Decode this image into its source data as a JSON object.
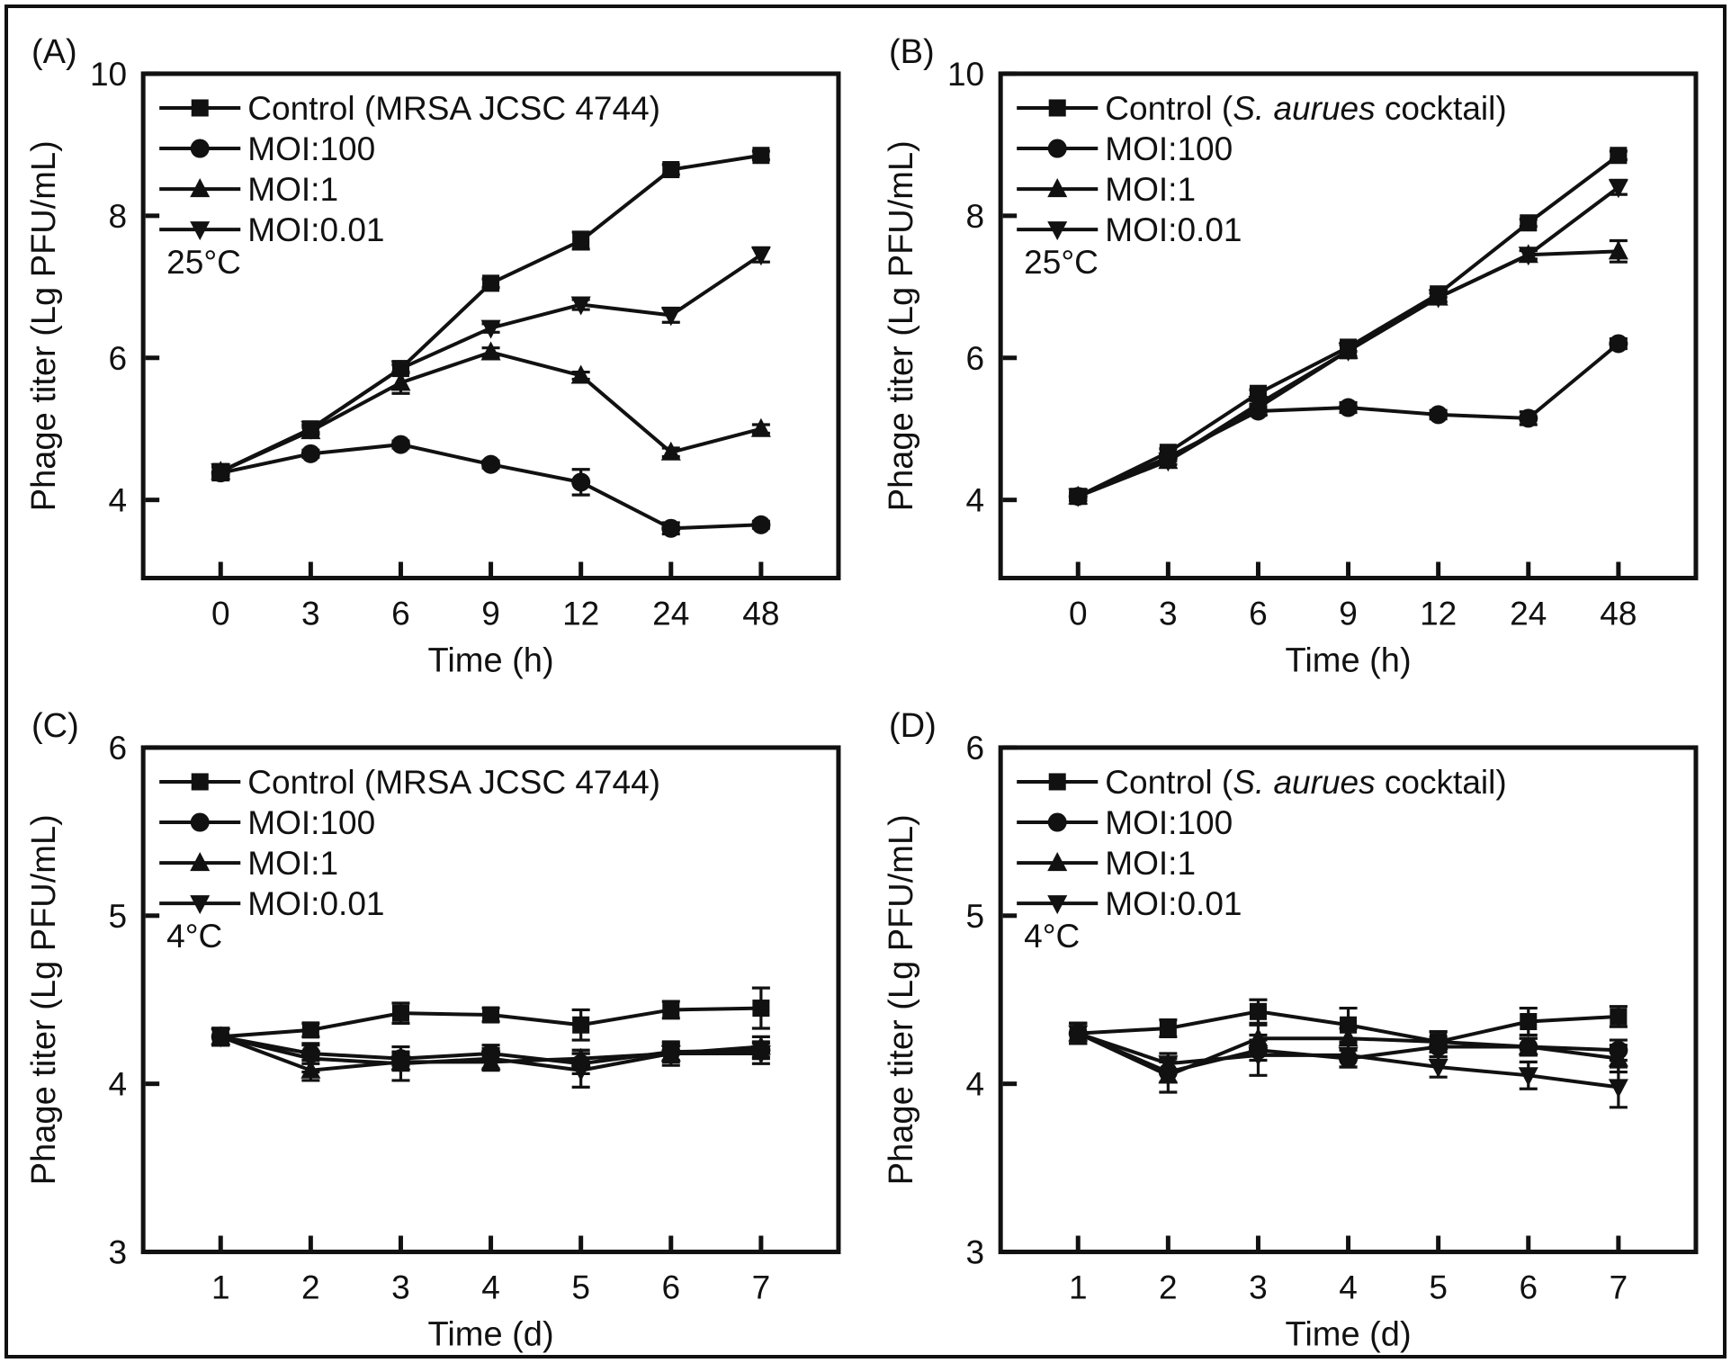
{
  "page": {
    "background": "#ffffff",
    "frame_border_color": "#111111"
  },
  "colors": {
    "ink": "#111111"
  },
  "chart_data": [
    {
      "panel": "A",
      "type": "line",
      "label": "(A)",
      "temperature": "25°C",
      "xlabel": "Time (h)",
      "ylabel": "Phage titer (Lg PFU/mL)",
      "categories": [
        "0",
        "3",
        "6",
        "9",
        "12",
        "24",
        "48"
      ],
      "yticks": [
        4,
        6,
        8,
        10
      ],
      "ylim": [
        2.9,
        10
      ],
      "legend_position": "top-left-inside",
      "grid": false,
      "series": [
        {
          "name": "control",
          "marker": "square",
          "label_parts": [
            {
              "text": "Control (MRSA JCSC 4744)",
              "italic": false
            }
          ],
          "values": [
            4.4,
            5.0,
            5.85,
            7.05,
            7.65,
            8.65,
            8.85
          ],
          "errors": [
            0.07,
            0.06,
            0.06,
            0.06,
            0.12,
            0.07,
            0.06
          ]
        },
        {
          "name": "moi-100",
          "marker": "circle",
          "label_parts": [
            {
              "text": "MOI:100",
              "italic": false
            }
          ],
          "values": [
            4.38,
            4.65,
            4.78,
            4.5,
            4.25,
            3.6,
            3.65
          ],
          "errors": [
            0.1,
            0.05,
            0.05,
            0.05,
            0.18,
            0.08,
            0.05
          ]
        },
        {
          "name": "moi-1",
          "marker": "triangle-up",
          "label_parts": [
            {
              "text": "MOI:1",
              "italic": false
            }
          ],
          "values": [
            4.4,
            4.97,
            5.65,
            6.08,
            5.75,
            4.67,
            5.0
          ],
          "errors": [
            0.06,
            0.05,
            0.15,
            0.06,
            0.05,
            0.06,
            0.06
          ]
        },
        {
          "name": "moi-0-01",
          "marker": "triangle-down",
          "label_parts": [
            {
              "text": "MOI:0.01",
              "italic": false
            }
          ],
          "values": [
            4.4,
            5.0,
            5.85,
            6.42,
            6.75,
            6.6,
            7.45
          ],
          "errors": [
            0.06,
            0.05,
            0.05,
            0.06,
            0.07,
            0.1,
            0.1
          ]
        }
      ]
    },
    {
      "panel": "B",
      "type": "line",
      "label": "(B)",
      "temperature": "25°C",
      "xlabel": "Time (h)",
      "ylabel": "Phage titer (Lg PFU/mL)",
      "categories": [
        "0",
        "3",
        "6",
        "9",
        "12",
        "24",
        "48"
      ],
      "yticks": [
        4,
        6,
        8,
        10
      ],
      "ylim": [
        2.9,
        10
      ],
      "legend_position": "top-left-inside",
      "grid": false,
      "series": [
        {
          "name": "control",
          "marker": "square",
          "label_parts": [
            {
              "text": "Control (",
              "italic": false
            },
            {
              "text": "S. aurues",
              "italic": true
            },
            {
              "text": " cocktail)",
              "italic": false
            }
          ],
          "values": [
            4.05,
            4.67,
            5.5,
            6.15,
            6.9,
            7.9,
            8.85
          ],
          "errors": [
            0.06,
            0.05,
            0.05,
            0.06,
            0.05,
            0.05,
            0.06
          ]
        },
        {
          "name": "moi-100",
          "marker": "circle",
          "label_parts": [
            {
              "text": "MOI:100",
              "italic": false
            }
          ],
          "values": [
            4.05,
            4.6,
            5.25,
            5.3,
            5.2,
            5.15,
            6.2
          ],
          "errors": [
            0.06,
            0.05,
            0.06,
            0.07,
            0.06,
            0.09,
            0.07
          ]
        },
        {
          "name": "moi-1",
          "marker": "triangle-up",
          "label_parts": [
            {
              "text": "MOI:1",
              "italic": false
            }
          ],
          "values": [
            4.05,
            4.55,
            5.3,
            6.1,
            6.85,
            7.45,
            7.5
          ],
          "errors": [
            0.06,
            0.05,
            0.05,
            0.08,
            0.06,
            0.06,
            0.15
          ]
        },
        {
          "name": "moi-0-01",
          "marker": "triangle-down",
          "label_parts": [
            {
              "text": "MOI:0.01",
              "italic": false
            }
          ],
          "values": [
            4.05,
            4.55,
            5.35,
            6.1,
            6.85,
            7.45,
            8.4
          ],
          "errors": [
            0.06,
            0.05,
            0.05,
            0.1,
            0.06,
            0.06,
            0.1
          ]
        }
      ]
    },
    {
      "panel": "C",
      "type": "line",
      "label": "(C)",
      "temperature": "4°C",
      "xlabel": "Time (d)",
      "ylabel": "Phage titer (Lg PFU/mL)",
      "categories": [
        "1",
        "2",
        "3",
        "4",
        "5",
        "6",
        "7"
      ],
      "yticks": [
        3,
        4,
        5,
        6
      ],
      "ylim": [
        3,
        6
      ],
      "legend_position": "top-left-inside",
      "grid": false,
      "series": [
        {
          "name": "control",
          "marker": "square",
          "label_parts": [
            {
              "text": "Control (MRSA JCSC 4744)",
              "italic": false
            }
          ],
          "values": [
            4.28,
            4.32,
            4.42,
            4.41,
            4.35,
            4.44,
            4.45
          ],
          "errors": [
            0.05,
            0.04,
            0.06,
            0.04,
            0.09,
            0.05,
            0.12
          ]
        },
        {
          "name": "moi-100",
          "marker": "circle",
          "label_parts": [
            {
              "text": "MOI:100",
              "italic": false
            }
          ],
          "values": [
            4.28,
            4.18,
            4.15,
            4.18,
            4.12,
            4.19,
            4.2
          ],
          "errors": [
            0.05,
            0.06,
            0.04,
            0.05,
            0.06,
            0.05,
            0.05
          ]
        },
        {
          "name": "moi-1",
          "marker": "triangle-up",
          "label_parts": [
            {
              "text": "MOI:1",
              "italic": false
            }
          ],
          "values": [
            4.28,
            4.08,
            4.13,
            4.13,
            4.15,
            4.18,
            4.22
          ],
          "errors": [
            0.05,
            0.06,
            0.05,
            0.05,
            0.05,
            0.05,
            0.06
          ]
        },
        {
          "name": "moi-0-01",
          "marker": "triangle-down",
          "label_parts": [
            {
              "text": "MOI:0.01",
              "italic": false
            }
          ],
          "values": [
            4.28,
            4.15,
            4.12,
            4.15,
            4.08,
            4.18,
            4.18
          ],
          "errors": [
            0.05,
            0.08,
            0.1,
            0.06,
            0.1,
            0.07,
            0.06
          ]
        }
      ]
    },
    {
      "panel": "D",
      "type": "line",
      "label": "(D)",
      "temperature": "4°C",
      "xlabel": "Time (d)",
      "ylabel": "Phage titer (Lg PFU/mL)",
      "categories": [
        "1",
        "2",
        "3",
        "4",
        "5",
        "6",
        "7"
      ],
      "yticks": [
        3,
        4,
        5,
        6
      ],
      "ylim": [
        3,
        6
      ],
      "legend_position": "top-left-inside",
      "grid": false,
      "series": [
        {
          "name": "control",
          "marker": "square",
          "label_parts": [
            {
              "text": "Control (",
              "italic": false
            },
            {
              "text": "S. aurues",
              "italic": true
            },
            {
              "text": " cocktail)",
              "italic": false
            }
          ],
          "values": [
            4.3,
            4.33,
            4.43,
            4.35,
            4.25,
            4.37,
            4.4
          ],
          "errors": [
            0.06,
            0.05,
            0.07,
            0.1,
            0.06,
            0.08,
            0.06
          ]
        },
        {
          "name": "moi-100",
          "marker": "circle",
          "label_parts": [
            {
              "text": "MOI:100",
              "italic": false
            }
          ],
          "values": [
            4.3,
            4.07,
            4.2,
            4.15,
            4.22,
            4.22,
            4.2
          ],
          "errors": [
            0.06,
            0.06,
            0.06,
            0.05,
            0.06,
            0.05,
            0.06
          ]
        },
        {
          "name": "moi-1",
          "marker": "triangle-up",
          "label_parts": [
            {
              "text": "MOI:1",
              "italic": false
            }
          ],
          "values": [
            4.3,
            4.05,
            4.27,
            4.27,
            4.25,
            4.22,
            4.15
          ],
          "errors": [
            0.06,
            0.1,
            0.08,
            0.06,
            0.06,
            0.05,
            0.08
          ]
        },
        {
          "name": "moi-0-01",
          "marker": "triangle-down",
          "label_parts": [
            {
              "text": "MOI:0.01",
              "italic": false
            }
          ],
          "values": [
            4.3,
            4.12,
            4.17,
            4.17,
            4.1,
            4.05,
            3.98
          ],
          "errors": [
            0.06,
            0.06,
            0.12,
            0.07,
            0.06,
            0.08,
            0.12
          ]
        }
      ]
    }
  ]
}
